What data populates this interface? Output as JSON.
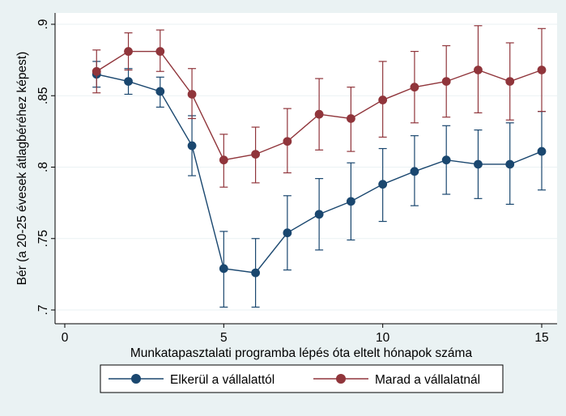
{
  "chart_data": {
    "type": "line",
    "xlabel": "Munkatapasztalati programba lépés óta eltelt hónapok száma",
    "ylabel": "Bér (a 20-25 évesek átlagbéréhez képest)",
    "xlim": [
      0,
      15
    ],
    "ylim": [
      0.7,
      0.9
    ],
    "x_ticks": [
      0,
      5,
      10,
      15
    ],
    "x_tick_labels": [
      "0",
      "5",
      "10",
      "15"
    ],
    "y_ticks": [
      0.7,
      0.75,
      0.8,
      0.85,
      0.9
    ],
    "y_tick_labels": [
      ".7",
      ".75",
      ".8",
      ".85",
      ".9"
    ],
    "grid": true,
    "legend_position": "bottom",
    "x": [
      1,
      2,
      3,
      4,
      5,
      6,
      7,
      8,
      9,
      10,
      11,
      12,
      13,
      14,
      15
    ],
    "series": [
      {
        "name": "Elkerül a vállalattól",
        "color": "#1a476f",
        "values": [
          0.865,
          0.86,
          0.853,
          0.815,
          0.729,
          0.726,
          0.754,
          0.767,
          0.776,
          0.788,
          0.797,
          0.805,
          0.802,
          0.802,
          0.811
        ],
        "ci_low": [
          0.856,
          0.851,
          0.842,
          0.794,
          0.702,
          0.702,
          0.728,
          0.742,
          0.749,
          0.762,
          0.773,
          0.781,
          0.778,
          0.774,
          0.784
        ],
        "ci_high": [
          0.874,
          0.869,
          0.863,
          0.836,
          0.755,
          0.75,
          0.78,
          0.792,
          0.803,
          0.813,
          0.822,
          0.829,
          0.826,
          0.831,
          0.839
        ]
      },
      {
        "name": "Marad a vállalatnál",
        "color": "#90353b",
        "values": [
          0.867,
          0.881,
          0.881,
          0.851,
          0.805,
          0.809,
          0.818,
          0.837,
          0.834,
          0.847,
          0.856,
          0.86,
          0.868,
          0.86,
          0.868
        ],
        "ci_low": [
          0.852,
          0.868,
          0.867,
          0.834,
          0.786,
          0.789,
          0.796,
          0.812,
          0.811,
          0.821,
          0.831,
          0.835,
          0.838,
          0.833,
          0.839
        ],
        "ci_high": [
          0.882,
          0.894,
          0.896,
          0.869,
          0.823,
          0.828,
          0.841,
          0.862,
          0.856,
          0.874,
          0.881,
          0.885,
          0.899,
          0.887,
          0.897
        ]
      }
    ]
  }
}
